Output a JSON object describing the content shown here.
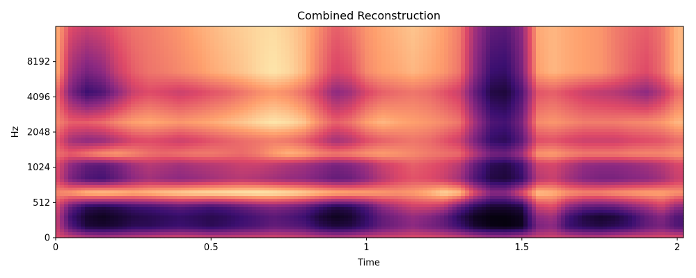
{
  "chart_data": {
    "type": "heatmap",
    "title": "Combined Reconstruction",
    "xlabel": "Time",
    "ylabel": "Hz",
    "xlim": [
      0,
      2.02
    ],
    "x_ticks": [
      {
        "value": 0,
        "label": "0"
      },
      {
        "value": 0.5,
        "label": "0.5"
      },
      {
        "value": 1,
        "label": "1"
      },
      {
        "value": 1.5,
        "label": "1.5"
      },
      {
        "value": 2,
        "label": "2"
      }
    ],
    "y_scale": "symlog",
    "ylim": [
      0,
      11025
    ],
    "y_ticks": [
      {
        "value": 0,
        "label": "0"
      },
      {
        "value": 512,
        "label": "512"
      },
      {
        "value": 1024,
        "label": "1024"
      },
      {
        "value": 2048,
        "label": "2048"
      },
      {
        "value": 4096,
        "label": "4096"
      },
      {
        "value": 8192,
        "label": "8192"
      }
    ],
    "colormap": "magma",
    "colormap_stops": [
      "#000004",
      "#3b0f70",
      "#8c2981",
      "#de4968",
      "#fe9f6d",
      "#fcfdbf"
    ],
    "time_columns": [
      0.0,
      0.05,
      0.1,
      0.15,
      0.2,
      0.25,
      0.3,
      0.35,
      0.4,
      0.45,
      0.5,
      0.55,
      0.6,
      0.65,
      0.7,
      0.75,
      0.8,
      0.85,
      0.9,
      0.95,
      1.0,
      1.05,
      1.1,
      1.15,
      1.2,
      1.25,
      1.3,
      1.35,
      1.4,
      1.45,
      1.5,
      1.55,
      1.6,
      1.65,
      1.7,
      1.75,
      1.8,
      1.85,
      1.9,
      1.95,
      2.0
    ],
    "freq_rows": [
      {
        "hz": 0,
        "values": [
          0.6,
          0.55,
          0.5,
          0.48,
          0.5,
          0.52,
          0.55,
          0.57,
          0.58,
          0.57,
          0.55,
          0.55,
          0.56,
          0.57,
          0.58,
          0.57,
          0.55,
          0.52,
          0.5,
          0.52,
          0.55,
          0.57,
          0.58,
          0.6,
          0.6,
          0.58,
          0.55,
          0.5,
          0.45,
          0.45,
          0.5,
          0.55,
          0.57,
          0.55,
          0.52,
          0.52,
          0.55,
          0.58,
          0.58,
          0.6,
          0.6
        ]
      },
      {
        "hz": 160,
        "values": [
          0.55,
          0.25,
          0.1,
          0.08,
          0.1,
          0.15,
          0.15,
          0.18,
          0.2,
          0.18,
          0.15,
          0.18,
          0.22,
          0.25,
          0.3,
          0.28,
          0.25,
          0.15,
          0.1,
          0.12,
          0.2,
          0.3,
          0.35,
          0.4,
          0.35,
          0.3,
          0.2,
          0.08,
          0.03,
          0.02,
          0.05,
          0.35,
          0.4,
          0.2,
          0.15,
          0.12,
          0.15,
          0.2,
          0.3,
          0.35,
          0.25
        ]
      },
      {
        "hz": 300,
        "values": [
          0.55,
          0.2,
          0.08,
          0.05,
          0.08,
          0.12,
          0.14,
          0.16,
          0.18,
          0.16,
          0.14,
          0.16,
          0.2,
          0.24,
          0.28,
          0.25,
          0.2,
          0.1,
          0.05,
          0.08,
          0.18,
          0.3,
          0.36,
          0.42,
          0.38,
          0.3,
          0.15,
          0.05,
          0.02,
          0.02,
          0.05,
          0.4,
          0.45,
          0.22,
          0.12,
          0.08,
          0.1,
          0.18,
          0.3,
          0.38,
          0.25
        ]
      },
      {
        "hz": 450,
        "values": [
          0.6,
          0.3,
          0.15,
          0.12,
          0.15,
          0.2,
          0.22,
          0.25,
          0.28,
          0.25,
          0.22,
          0.25,
          0.3,
          0.35,
          0.38,
          0.35,
          0.3,
          0.2,
          0.12,
          0.15,
          0.25,
          0.4,
          0.48,
          0.55,
          0.55,
          0.5,
          0.3,
          0.15,
          0.08,
          0.08,
          0.12,
          0.55,
          0.6,
          0.4,
          0.3,
          0.28,
          0.3,
          0.38,
          0.45,
          0.55,
          0.4
        ]
      },
      {
        "hz": 650,
        "values": [
          0.75,
          0.8,
          0.88,
          0.9,
          0.88,
          0.85,
          0.87,
          0.9,
          0.92,
          0.94,
          0.95,
          0.96,
          0.97,
          0.98,
          0.97,
          0.95,
          0.92,
          0.88,
          0.85,
          0.83,
          0.82,
          0.8,
          0.78,
          0.8,
          0.85,
          0.93,
          0.88,
          0.6,
          0.4,
          0.4,
          0.6,
          0.88,
          0.85,
          0.78,
          0.75,
          0.75,
          0.78,
          0.8,
          0.82,
          0.82,
          0.78
        ]
      },
      {
        "hz": 850,
        "values": [
          0.6,
          0.35,
          0.25,
          0.22,
          0.3,
          0.4,
          0.45,
          0.42,
          0.4,
          0.42,
          0.45,
          0.48,
          0.5,
          0.48,
          0.45,
          0.42,
          0.4,
          0.35,
          0.3,
          0.32,
          0.4,
          0.5,
          0.58,
          0.62,
          0.6,
          0.55,
          0.45,
          0.25,
          0.12,
          0.1,
          0.18,
          0.5,
          0.55,
          0.45,
          0.38,
          0.35,
          0.35,
          0.38,
          0.4,
          0.45,
          0.55
        ]
      },
      {
        "hz": 1100,
        "values": [
          0.62,
          0.4,
          0.3,
          0.28,
          0.35,
          0.45,
          0.5,
          0.48,
          0.45,
          0.48,
          0.5,
          0.52,
          0.55,
          0.55,
          0.52,
          0.48,
          0.45,
          0.4,
          0.35,
          0.38,
          0.45,
          0.55,
          0.6,
          0.65,
          0.62,
          0.58,
          0.5,
          0.3,
          0.15,
          0.12,
          0.22,
          0.55,
          0.58,
          0.5,
          0.42,
          0.4,
          0.4,
          0.42,
          0.45,
          0.5,
          0.58
        ]
      },
      {
        "hz": 1400,
        "values": [
          0.7,
          0.65,
          0.72,
          0.78,
          0.8,
          0.75,
          0.7,
          0.68,
          0.7,
          0.72,
          0.72,
          0.7,
          0.68,
          0.72,
          0.8,
          0.85,
          0.82,
          0.75,
          0.72,
          0.74,
          0.78,
          0.8,
          0.78,
          0.75,
          0.72,
          0.7,
          0.68,
          0.5,
          0.35,
          0.33,
          0.45,
          0.78,
          0.8,
          0.75,
          0.72,
          0.72,
          0.72,
          0.74,
          0.75,
          0.75,
          0.78
        ]
      },
      {
        "hz": 1800,
        "values": [
          0.65,
          0.45,
          0.4,
          0.42,
          0.5,
          0.58,
          0.6,
          0.58,
          0.55,
          0.58,
          0.62,
          0.65,
          0.68,
          0.7,
          0.72,
          0.7,
          0.65,
          0.55,
          0.45,
          0.5,
          0.6,
          0.65,
          0.68,
          0.7,
          0.68,
          0.62,
          0.55,
          0.35,
          0.18,
          0.15,
          0.28,
          0.6,
          0.62,
          0.58,
          0.55,
          0.55,
          0.55,
          0.58,
          0.6,
          0.62,
          0.68
        ]
      },
      {
        "hz": 2600,
        "values": [
          0.75,
          0.65,
          0.65,
          0.68,
          0.75,
          0.8,
          0.82,
          0.8,
          0.78,
          0.8,
          0.82,
          0.85,
          0.88,
          0.92,
          0.95,
          0.93,
          0.88,
          0.75,
          0.65,
          0.7,
          0.8,
          0.85,
          0.82,
          0.8,
          0.78,
          0.75,
          0.7,
          0.45,
          0.25,
          0.22,
          0.35,
          0.75,
          0.78,
          0.75,
          0.72,
          0.72,
          0.72,
          0.74,
          0.75,
          0.78,
          0.85
        ]
      },
      {
        "hz": 4600,
        "values": [
          0.7,
          0.35,
          0.2,
          0.25,
          0.4,
          0.55,
          0.6,
          0.58,
          0.55,
          0.58,
          0.62,
          0.65,
          0.7,
          0.75,
          0.78,
          0.75,
          0.68,
          0.55,
          0.4,
          0.45,
          0.58,
          0.65,
          0.68,
          0.7,
          0.68,
          0.62,
          0.55,
          0.3,
          0.12,
          0.1,
          0.25,
          0.62,
          0.65,
          0.6,
          0.55,
          0.52,
          0.5,
          0.45,
          0.4,
          0.5,
          0.68
        ]
      },
      {
        "hz": 7000,
        "values": [
          0.85,
          0.45,
          0.35,
          0.4,
          0.55,
          0.65,
          0.7,
          0.72,
          0.75,
          0.78,
          0.82,
          0.85,
          0.88,
          0.92,
          0.95,
          0.92,
          0.85,
          0.7,
          0.58,
          0.62,
          0.75,
          0.8,
          0.82,
          0.85,
          0.82,
          0.78,
          0.7,
          0.4,
          0.2,
          0.18,
          0.35,
          0.8,
          0.85,
          0.82,
          0.8,
          0.78,
          0.72,
          0.65,
          0.6,
          0.68,
          0.85
        ]
      },
      {
        "hz": 11025,
        "values": [
          0.85,
          0.6,
          0.55,
          0.58,
          0.65,
          0.7,
          0.72,
          0.75,
          0.78,
          0.82,
          0.85,
          0.88,
          0.9,
          0.92,
          0.93,
          0.9,
          0.85,
          0.75,
          0.65,
          0.7,
          0.78,
          0.82,
          0.85,
          0.88,
          0.85,
          0.8,
          0.72,
          0.45,
          0.3,
          0.28,
          0.4,
          0.82,
          0.85,
          0.82,
          0.8,
          0.78,
          0.72,
          0.68,
          0.65,
          0.7,
          0.85
        ]
      }
    ]
  }
}
